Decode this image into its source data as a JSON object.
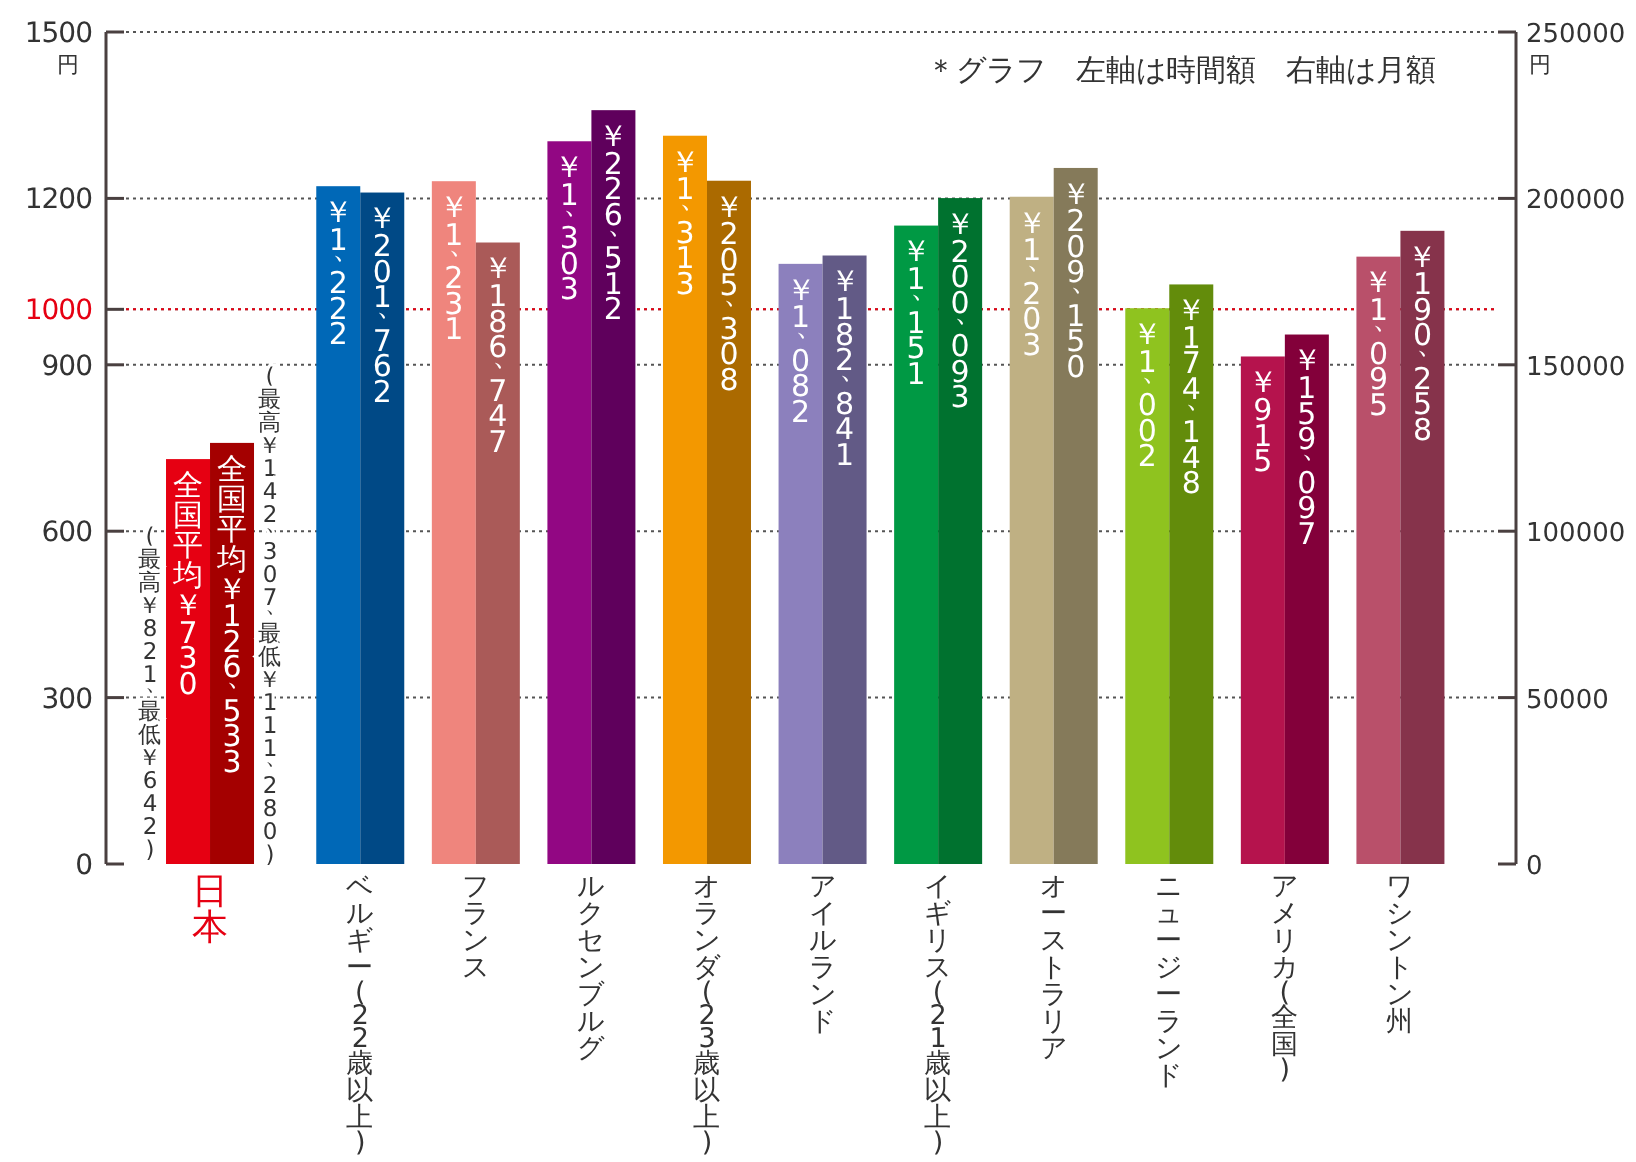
{
  "chart_data": {
    "type": "bar",
    "categories": [
      "日本",
      "ベルギー(22歳以上)",
      "フランス",
      "ルクセンブルグ",
      "オランダ(23歳以上)",
      "アイルランド",
      "イギリス(21歳以上)",
      "オーストラリア",
      "ニュージーランド",
      "アメリカ(全国)",
      "ワシントン州"
    ],
    "series": [
      {
        "values": [
          730,
          1222,
          1231,
          1303,
          1313,
          1082,
          1151,
          1203,
          1002,
          915,
          1095
        ],
        "colors": [
          "#e60012",
          "#0068b7",
          "#ef857d",
          "#920783",
          "#f39800",
          "#8c80bd",
          "#009944",
          "#bfb083",
          "#8fc31f",
          "#b5134d",
          "#b9506a"
        ],
        "value_labels": [
          "全国平均￥730",
          "￥1、222",
          "￥1、231",
          "￥1、303",
          "￥1、313",
          "￥1、082",
          "￥1、151",
          "￥1、203",
          "￥1、002",
          "￥915",
          "￥1、095"
        ]
      },
      {
        "axis": "y2",
        "values": [
          126533,
          201762,
          186747,
          226512,
          205308,
          182841,
          200093,
          209150,
          174148,
          159097,
          190258
        ],
        "colors": [
          "#a40000",
          "#004986",
          "#aa5a58",
          "#5f005c",
          "#ab6a00",
          "#625a86",
          "#00722f",
          "#857a5a",
          "#638c0b",
          "#83003a",
          "#86334b"
        ],
        "value_labels": [
          "全国平均￥126、533",
          "￥201、762",
          "￥186、747",
          "￥226、512",
          "￥205、308",
          "￥182、841",
          "￥200、093",
          "￥209、150",
          "￥174、148",
          "￥159、097",
          "￥190、258"
        ]
      }
    ],
    "ylabel": "円",
    "y2label": "円",
    "ylim": [
      0,
      1500
    ],
    "yticks": [
      0,
      300,
      600,
      900,
      1000,
      1200,
      1500
    ],
    "y2lim": [
      0,
      250000
    ],
    "y2ticks": [
      0,
      50000,
      100000,
      150000,
      200000,
      250000
    ],
    "grid": "y",
    "ref_lines": [
      {
        "axis": "y",
        "value": 1000,
        "color": "#e60012"
      }
    ],
    "annotations": [
      "＊グラフ　左軸は時間額　右軸は月額",
      "(最高￥821、最低￥642)",
      "(最高￥142、307、最低￥111、280)"
    ]
  }
}
